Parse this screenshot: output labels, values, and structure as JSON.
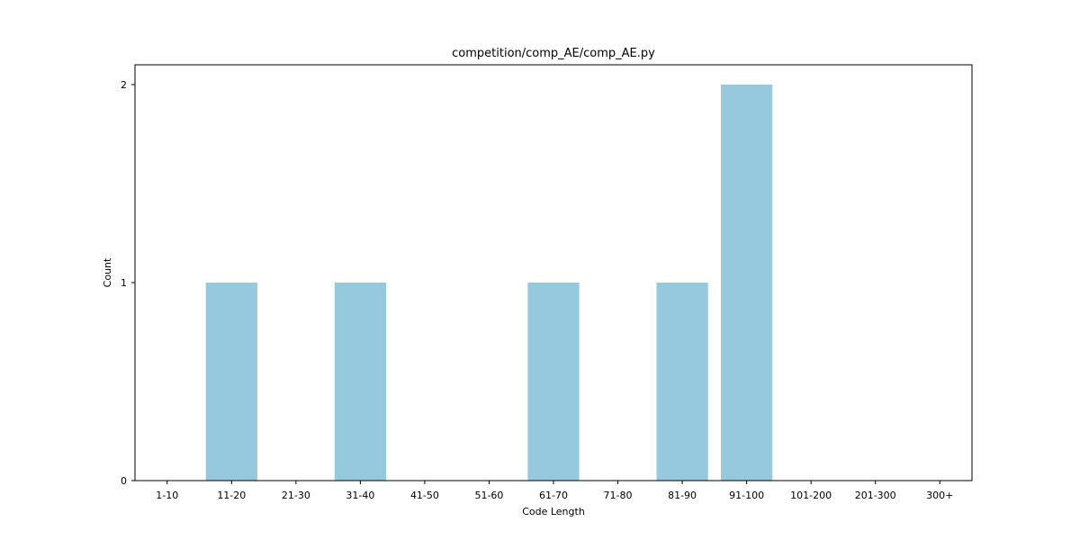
{
  "chart_data": {
    "type": "bar",
    "title": "competition/comp_AE/comp_AE.py",
    "xlabel": "Code Length",
    "ylabel": "Count",
    "categories": [
      "1-10",
      "11-20",
      "21-30",
      "31-40",
      "41-50",
      "51-60",
      "61-70",
      "71-80",
      "81-90",
      "91-100",
      "101-200",
      "201-300",
      "300+"
    ],
    "values": [
      0,
      1,
      0,
      1,
      0,
      0,
      1,
      0,
      1,
      2,
      0,
      0,
      0
    ],
    "ylim": [
      0,
      2.1
    ],
    "yticks": [
      0,
      1,
      2
    ],
    "grid": false,
    "bar_color": "#96c9dd"
  }
}
